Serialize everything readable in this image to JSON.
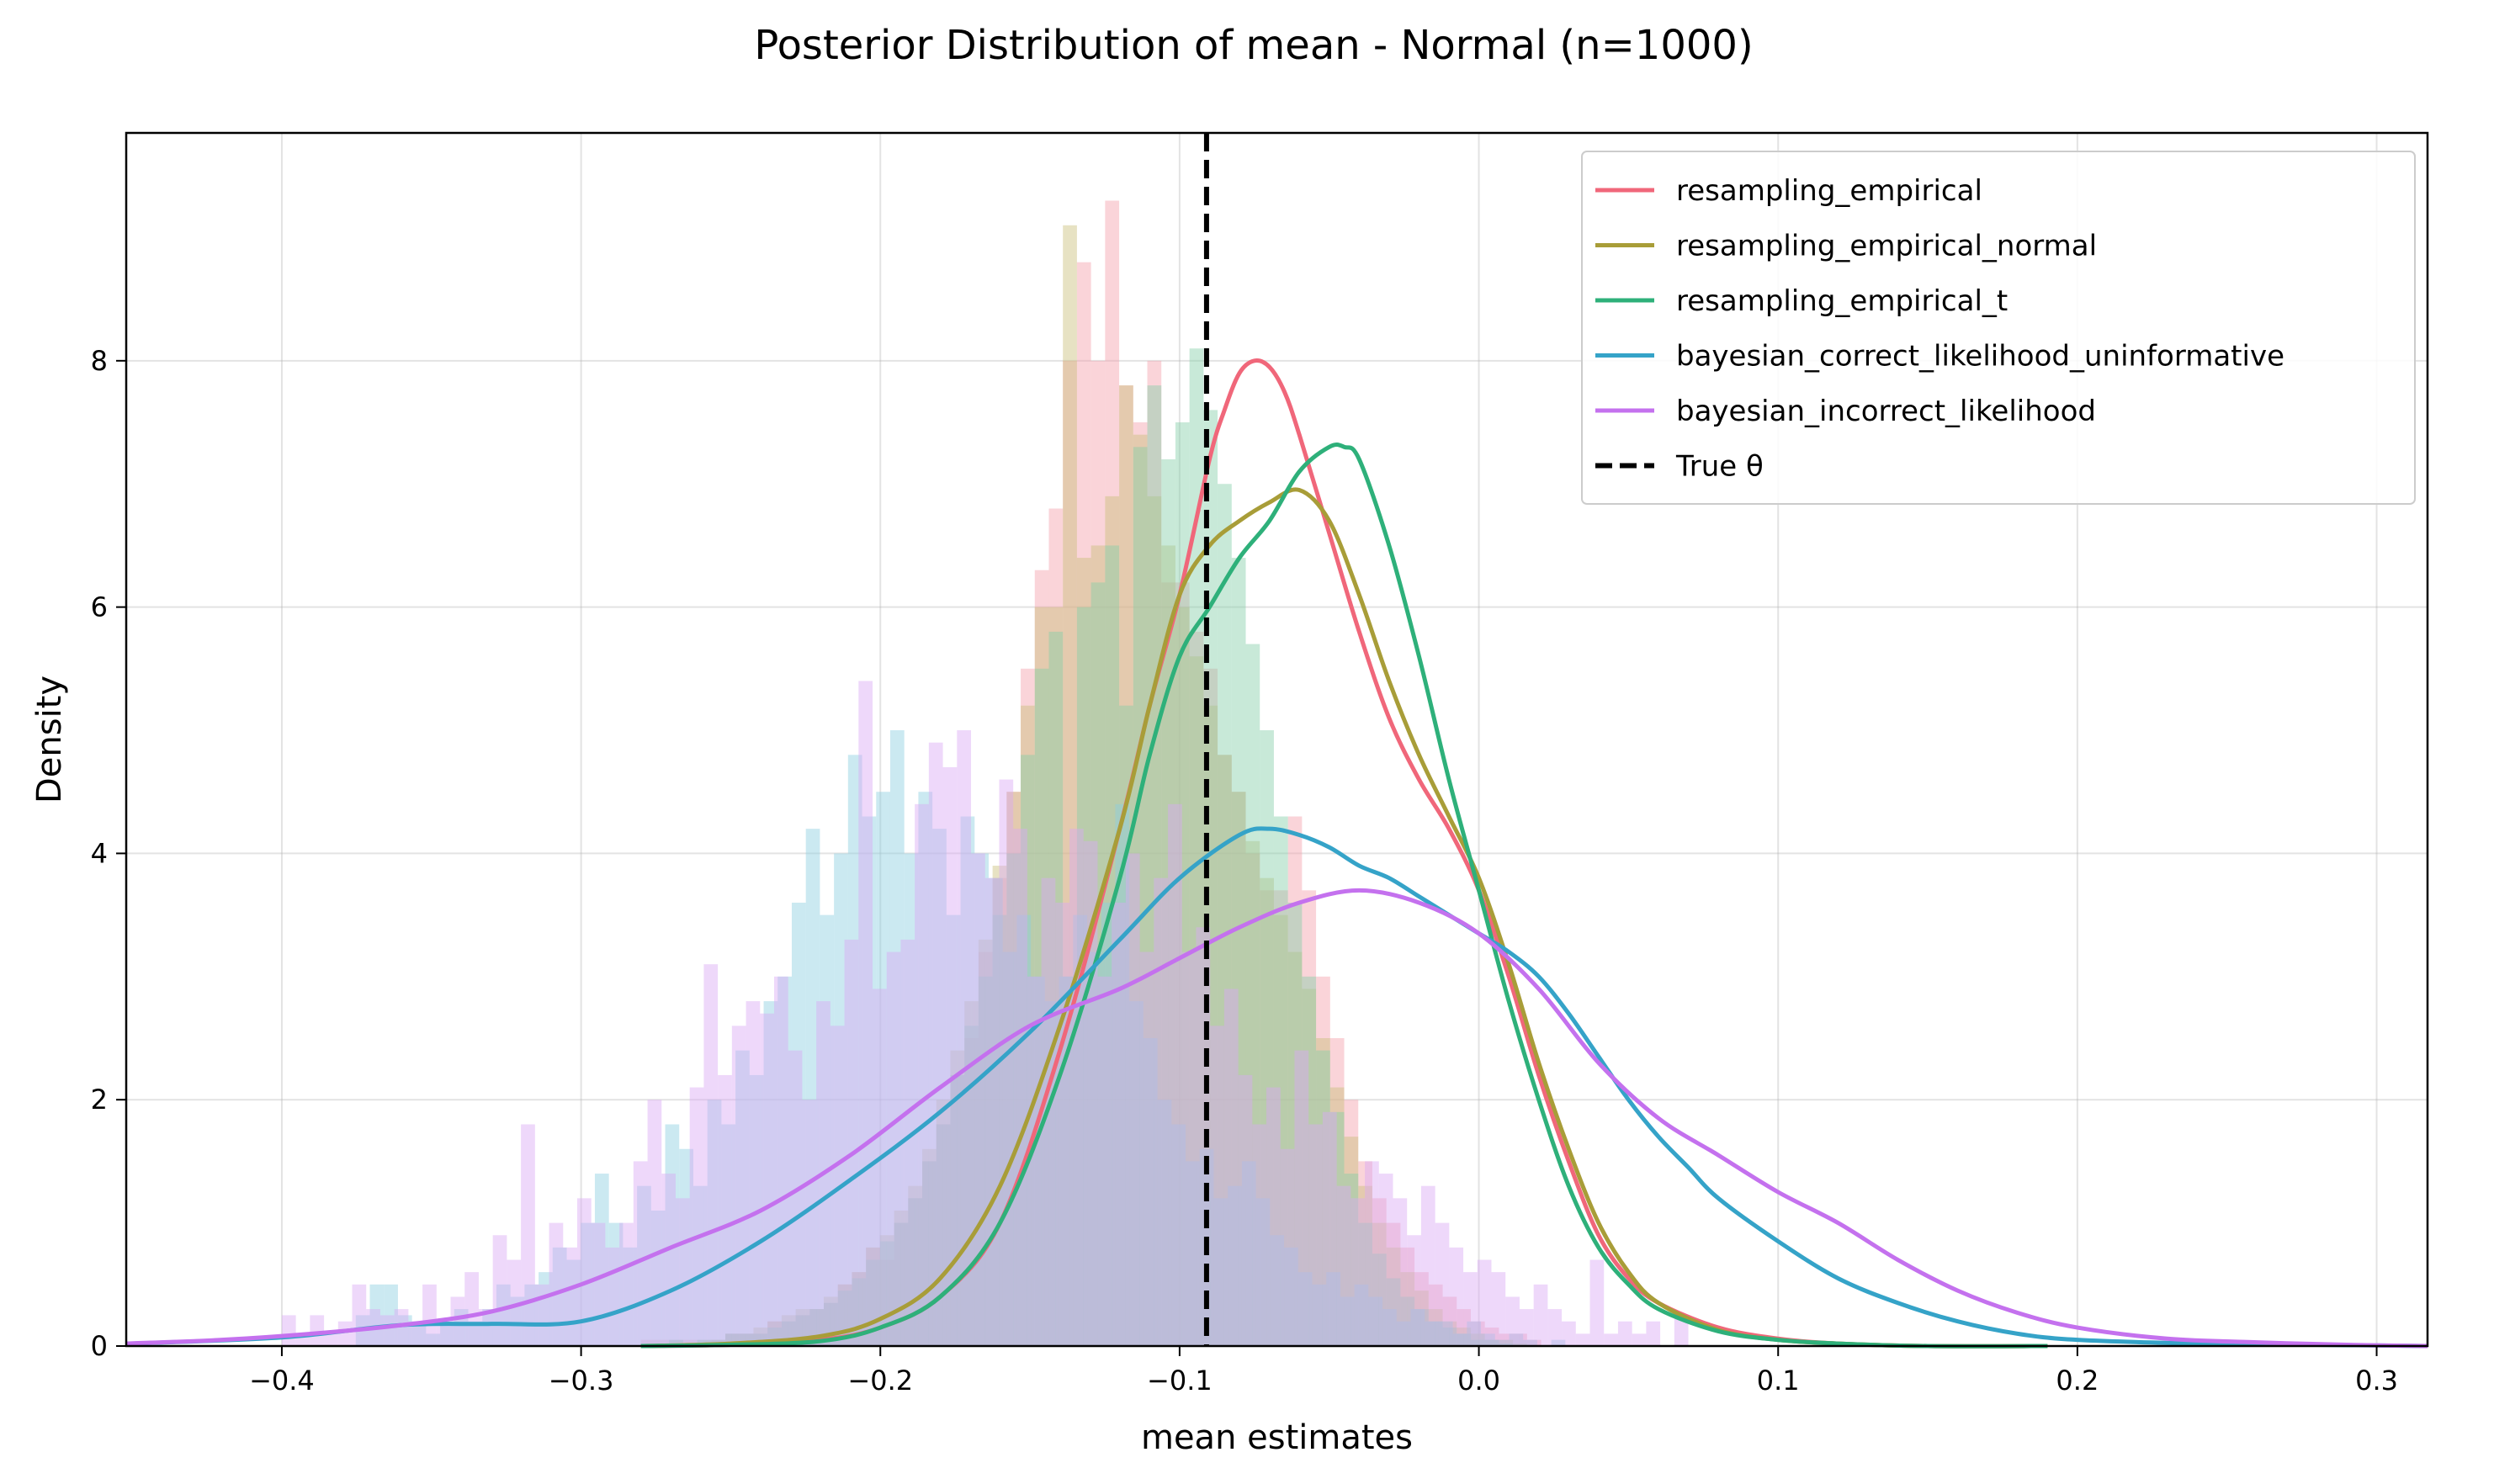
{
  "chart_data": {
    "type": "area",
    "title": "Posterior Distribution of mean - Normal (n=1000)",
    "xlabel": "mean estimates",
    "ylabel": "Density",
    "xlim": [
      -0.452,
      0.317
    ],
    "ylim": [
      0,
      9.85
    ],
    "x_ticks": [
      -0.4,
      -0.3,
      -0.2,
      -0.1,
      0.0,
      0.1,
      0.2,
      0.3
    ],
    "x_tick_labels": [
      "−0.4",
      "−0.3",
      "−0.2",
      "−0.1",
      "0.0",
      "0.1",
      "0.2",
      "0.3"
    ],
    "y_ticks": [
      0,
      2,
      4,
      6,
      8
    ],
    "y_tick_labels": [
      "0",
      "2",
      "4",
      "6",
      "8"
    ],
    "grid": true,
    "legend_position": "top-right",
    "true_theta": -0.091,
    "true_theta_label": "True θ",
    "true_theta_color": "#000000",
    "series": [
      {
        "name": "resampling_empirical",
        "color": "#f0677a",
        "hist_color": "#f5a0ab",
        "hist_opacity": 0.45,
        "hist": {
          "start": -0.28,
          "bin_width": 0.0047,
          "values": [
            0.05,
            0.05,
            0,
            0.05,
            0,
            0.05,
            0.1,
            0.1,
            0.1,
            0.2,
            0.2,
            0.25,
            0.3,
            0.35,
            0.5,
            0.6,
            0.8,
            0.7,
            1.0,
            1.2,
            1.5,
            1.8,
            2.2,
            2.5,
            3.2,
            3.8,
            4.5,
            5.5,
            6.3,
            6.8,
            8.0,
            8.8,
            8.0,
            9.3,
            7.8,
            7.5,
            8.0,
            6.2,
            6.2,
            5.8,
            5.5,
            4.8,
            4.5,
            4.0,
            3.7,
            3.7,
            4.3,
            3.7,
            3.0,
            2.5,
            2.0,
            1.5,
            1.2,
            1.0,
            0.8,
            0.6,
            0.5,
            0.4,
            0.3,
            0.2,
            0.15,
            0.1,
            0.1,
            0.05
          ]
        },
        "kde": {
          "x": [
            -0.28,
            -0.25,
            -0.22,
            -0.2,
            -0.18,
            -0.16,
            -0.14,
            -0.12,
            -0.11,
            -0.1,
            -0.09,
            -0.085,
            -0.08,
            -0.075,
            -0.07,
            -0.065,
            -0.06,
            -0.05,
            -0.04,
            -0.03,
            -0.02,
            -0.01,
            0.0,
            0.01,
            0.02,
            0.03,
            0.04,
            0.05,
            0.06,
            0.08,
            0.1,
            0.12,
            0.15,
            0.19
          ],
          "y": [
            0,
            0.01,
            0.05,
            0.15,
            0.4,
            1.0,
            2.4,
            4.2,
            5.2,
            6.1,
            7.2,
            7.6,
            7.9,
            8.0,
            7.95,
            7.75,
            7.4,
            6.6,
            5.8,
            5.1,
            4.6,
            4.2,
            3.7,
            3.0,
            2.2,
            1.5,
            0.9,
            0.55,
            0.35,
            0.15,
            0.06,
            0.02,
            0,
            0
          ]
        }
      },
      {
        "name": "resampling_empirical_normal",
        "color": "#a89d38",
        "hist_color": "#c9bf7a",
        "hist_opacity": 0.45,
        "hist": {
          "start": -0.28,
          "bin_width": 0.0047,
          "values": [
            0,
            0,
            0.05,
            0,
            0.05,
            0.05,
            0.1,
            0.1,
            0.15,
            0.2,
            0.25,
            0.3,
            0.3,
            0.4,
            0.5,
            0.6,
            0.8,
            0.9,
            1.1,
            1.3,
            1.6,
            2.0,
            2.4,
            2.8,
            3.3,
            3.9,
            4.5,
            5.2,
            6.0,
            6.0,
            9.1,
            6.4,
            6.5,
            6.9,
            7.8,
            7.4,
            6.9,
            6.5,
            6.0,
            5.6,
            5.2,
            4.8,
            4.5,
            4.1,
            3.8,
            3.5,
            3.2,
            2.9,
            2.5,
            2.1,
            1.7,
            1.3,
            1.0,
            0.8,
            0.6,
            0.45,
            0.3,
            0.2,
            0.15,
            0.1,
            0.05,
            0.05,
            0.02,
            0.01
          ]
        },
        "kde": {
          "x": [
            -0.28,
            -0.25,
            -0.22,
            -0.2,
            -0.18,
            -0.16,
            -0.14,
            -0.12,
            -0.11,
            -0.1,
            -0.09,
            -0.08,
            -0.07,
            -0.06,
            -0.05,
            -0.04,
            -0.03,
            -0.02,
            -0.01,
            0.0,
            0.01,
            0.02,
            0.03,
            0.04,
            0.05,
            0.06,
            0.08,
            0.1,
            0.12,
            0.15,
            0.19
          ],
          "y": [
            0,
            0.02,
            0.08,
            0.22,
            0.55,
            1.3,
            2.6,
            4.2,
            5.2,
            6.1,
            6.5,
            6.7,
            6.85,
            6.95,
            6.7,
            6.1,
            5.4,
            4.8,
            4.3,
            3.8,
            3.1,
            2.3,
            1.6,
            1.0,
            0.6,
            0.35,
            0.13,
            0.05,
            0.02,
            0,
            0
          ]
        }
      },
      {
        "name": "resampling_empirical_t",
        "color": "#2eb07a",
        "hist_color": "#84cfa8",
        "hist_opacity": 0.45,
        "hist": {
          "start": -0.28,
          "bin_width": 0.0047,
          "values": [
            0,
            0,
            0.05,
            0,
            0.05,
            0.05,
            0.1,
            0.1,
            0.1,
            0.15,
            0.2,
            0.25,
            0.3,
            0.35,
            0.45,
            0.55,
            0.7,
            0.85,
            1.0,
            1.2,
            1.5,
            1.8,
            2.2,
            2.6,
            3.0,
            3.5,
            4.0,
            4.8,
            5.5,
            5.8,
            3.0,
            6.0,
            6.2,
            6.5,
            5.2,
            7.3,
            7.8,
            7.2,
            7.5,
            8.1,
            7.6,
            7.0,
            6.4,
            5.7,
            5.0,
            4.3,
            3.6,
            3.0,
            2.4,
            1.9,
            1.4,
            1.0,
            0.75,
            0.55,
            0.4,
            0.3,
            0.2,
            0.15,
            0.1,
            0.05,
            0.05,
            0.02,
            0.01,
            0
          ]
        },
        "kde": {
          "x": [
            -0.28,
            -0.25,
            -0.22,
            -0.2,
            -0.18,
            -0.16,
            -0.14,
            -0.12,
            -0.11,
            -0.1,
            -0.09,
            -0.08,
            -0.07,
            -0.06,
            -0.05,
            -0.045,
            -0.04,
            -0.03,
            -0.02,
            -0.01,
            0.0,
            0.01,
            0.02,
            0.03,
            0.04,
            0.05,
            0.06,
            0.08,
            0.1,
            0.12,
            0.15,
            0.19
          ],
          "y": [
            0,
            0.01,
            0.04,
            0.15,
            0.4,
            1.0,
            2.2,
            3.8,
            4.8,
            5.6,
            6.0,
            6.4,
            6.7,
            7.1,
            7.3,
            7.3,
            7.2,
            6.5,
            5.6,
            4.6,
            3.7,
            2.8,
            2.0,
            1.3,
            0.8,
            0.5,
            0.3,
            0.12,
            0.05,
            0.02,
            0,
            0
          ]
        }
      },
      {
        "name": "bayesian_correct_likelihood_uninformative",
        "color": "#35a3c8",
        "hist_color": "#8ccfe0",
        "hist_opacity": 0.45,
        "hist": {
          "start": -0.38,
          "bin_width": 0.0047,
          "values": [
            0,
            0.25,
            0.5,
            0.5,
            0.25,
            0.2,
            0.1,
            0.2,
            0.3,
            0.2,
            0.3,
            0.5,
            0.4,
            0.5,
            0.6,
            0.8,
            0.7,
            1.0,
            1.4,
            1.0,
            0.8,
            1.3,
            1.1,
            1.8,
            1.6,
            1.3,
            2.0,
            1.8,
            2.4,
            2.2,
            2.8,
            3.0,
            3.6,
            4.2,
            3.5,
            4.0,
            4.8,
            4.3,
            4.5,
            5.0,
            4.0,
            4.5,
            4.2,
            3.5,
            4.3,
            4.0,
            3.8,
            3.2,
            3.5,
            3.0,
            2.8,
            3.0,
            3.5,
            3.2,
            3.6,
            4.4,
            2.8,
            2.5,
            2.0,
            1.8,
            1.5,
            1.6,
            1.2,
            1.3,
            1.5,
            1.2,
            0.9,
            0.8,
            0.6,
            0.5,
            0.6,
            0.4,
            0.5,
            0.4,
            0.3,
            0.2,
            0.3,
            0.2,
            0.2,
            0.1,
            0.2,
            0.1,
            0.05,
            0.1,
            0.05,
            0,
            0.05,
            0
          ]
        },
        "kde": {
          "x": [
            -0.45,
            -0.4,
            -0.36,
            -0.33,
            -0.3,
            -0.27,
            -0.24,
            -0.21,
            -0.18,
            -0.15,
            -0.12,
            -0.1,
            -0.08,
            -0.07,
            -0.06,
            -0.05,
            -0.04,
            -0.03,
            -0.02,
            -0.01,
            0.0,
            0.01,
            0.02,
            0.03,
            0.04,
            0.05,
            0.06,
            0.07,
            0.08,
            0.1,
            0.12,
            0.14,
            0.16,
            0.18,
            0.2,
            0.24,
            0.28,
            0.317
          ],
          "y": [
            0.02,
            0.07,
            0.17,
            0.18,
            0.2,
            0.45,
            0.85,
            1.35,
            1.9,
            2.55,
            3.3,
            3.8,
            4.15,
            4.2,
            4.15,
            4.05,
            3.9,
            3.8,
            3.65,
            3.5,
            3.35,
            3.2,
            3.0,
            2.7,
            2.35,
            2.0,
            1.7,
            1.45,
            1.2,
            0.85,
            0.55,
            0.35,
            0.2,
            0.1,
            0.05,
            0.02,
            0.01,
            0
          ]
        }
      },
      {
        "name": "bayesian_incorrect_likelihood",
        "color": "#c471ee",
        "hist_color": "#d9a8f4",
        "hist_opacity": 0.45,
        "hist": {
          "start": -0.4,
          "bin_width": 0.0047,
          "values": [
            0.25,
            0.1,
            0.25,
            0.1,
            0.2,
            0.5,
            0.3,
            0.25,
            0.3,
            0.2,
            0.5,
            0.2,
            0.4,
            0.6,
            0.3,
            0.9,
            0.7,
            1.8,
            0.5,
            1.0,
            0.8,
            1.2,
            1.0,
            0.8,
            1.0,
            1.5,
            2.0,
            1.4,
            1.2,
            2.1,
            3.1,
            2.2,
            2.6,
            2.8,
            2.7,
            3.0,
            2.4,
            2.0,
            2.8,
            2.6,
            3.3,
            5.4,
            2.9,
            3.2,
            3.3,
            4.4,
            4.9,
            4.7,
            5.0,
            4.0,
            3.8,
            4.6,
            4.2,
            3.0,
            3.8,
            3.6,
            4.2,
            4.1,
            3.0,
            3.6,
            4.0,
            3.2,
            3.8,
            4.4,
            3.2,
            3.4,
            2.6,
            2.9,
            2.2,
            1.8,
            2.1,
            1.6,
            2.4,
            1.8,
            1.9,
            1.3,
            1.2,
            1.5,
            1.4,
            1.2,
            0.9,
            1.3,
            1.0,
            0.8,
            0.6,
            0.7,
            0.6,
            0.4,
            0.3,
            0.5,
            0.3,
            0.2,
            0.1,
            0.7,
            0.1,
            0.2,
            0.1,
            0.2,
            0,
            0.25
          ]
        },
        "kde": {
          "x": [
            -0.452,
            -0.42,
            -0.39,
            -0.36,
            -0.33,
            -0.3,
            -0.27,
            -0.24,
            -0.21,
            -0.18,
            -0.15,
            -0.12,
            -0.1,
            -0.08,
            -0.06,
            -0.04,
            -0.02,
            0.0,
            0.02,
            0.04,
            0.06,
            0.08,
            0.1,
            0.12,
            0.14,
            0.16,
            0.18,
            0.2,
            0.23,
            0.26,
            0.29,
            0.317
          ],
          "y": [
            0.02,
            0.05,
            0.1,
            0.17,
            0.28,
            0.5,
            0.8,
            1.1,
            1.55,
            2.1,
            2.6,
            2.9,
            3.15,
            3.4,
            3.6,
            3.7,
            3.6,
            3.35,
            2.9,
            2.3,
            1.85,
            1.55,
            1.25,
            1.0,
            0.7,
            0.45,
            0.27,
            0.15,
            0.06,
            0.03,
            0.01,
            0
          ]
        }
      }
    ]
  }
}
